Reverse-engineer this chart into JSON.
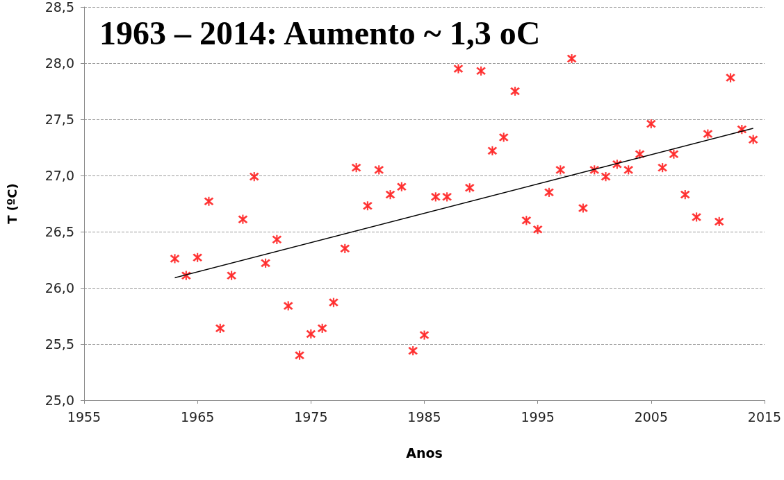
{
  "chart_data": {
    "type": "scatter",
    "title": "1963 – 2014: Aumento ~ 1,3 oC",
    "xlabel": "Anos",
    "ylabel": "T (ºC)",
    "xlim": [
      1955,
      2015
    ],
    "xticks": [
      1955,
      1965,
      1975,
      1985,
      1995,
      2005,
      2015
    ],
    "ylim": [
      25,
      28.5
    ],
    "yticks": [
      {
        "value": 25,
        "label": "25,0"
      },
      {
        "value": 25.5,
        "label": "25,5"
      },
      {
        "value": 26,
        "label": "26,0"
      },
      {
        "value": 26.5,
        "label": "26,5"
      },
      {
        "value": 27,
        "label": "27,0"
      },
      {
        "value": 27.5,
        "label": "27,5"
      },
      {
        "value": 28,
        "label": "28,0"
      },
      {
        "value": 28.5,
        "label": "28,5"
      }
    ],
    "grid": "y",
    "marker": "cross",
    "series": [
      {
        "color": "#ff2020",
        "x": [
          1963,
          1964,
          1965,
          1966,
          1967,
          1968,
          1969,
          1970,
          1971,
          1972,
          1973,
          1974,
          1975,
          1976,
          1977,
          1978,
          1979,
          1980,
          1981,
          1982,
          1983,
          1984,
          1985,
          1986,
          1987,
          1988,
          1989,
          1990,
          1991,
          1992,
          1993,
          1994,
          1995,
          1996,
          1997,
          1998,
          1999,
          2000,
          2001,
          2002,
          2003,
          2004,
          2005,
          2006,
          2007,
          2008,
          2009,
          2010,
          2011,
          2012,
          2013,
          2014
        ],
        "values": [
          26.26,
          26.11,
          26.27,
          26.77,
          25.64,
          26.11,
          26.61,
          26.99,
          26.22,
          26.43,
          25.84,
          25.4,
          25.59,
          25.64,
          25.87,
          26.35,
          27.07,
          26.73,
          27.05,
          26.83,
          26.9,
          25.44,
          25.58,
          26.81,
          26.81,
          27.95,
          26.89,
          27.93,
          27.22,
          27.34,
          27.75,
          26.6,
          26.52,
          26.85,
          27.05,
          28.04,
          26.71,
          27.05,
          26.99,
          27.1,
          27.05,
          27.19,
          27.46,
          27.07,
          27.19,
          26.83,
          26.63,
          27.37,
          26.59,
          27.87,
          27.41,
          27.32
        ]
      },
      {
        "type": "line",
        "marker": "none",
        "color": "#000000",
        "x": [
          1963,
          2014
        ],
        "values": [
          26.09,
          27.42
        ]
      }
    ]
  }
}
